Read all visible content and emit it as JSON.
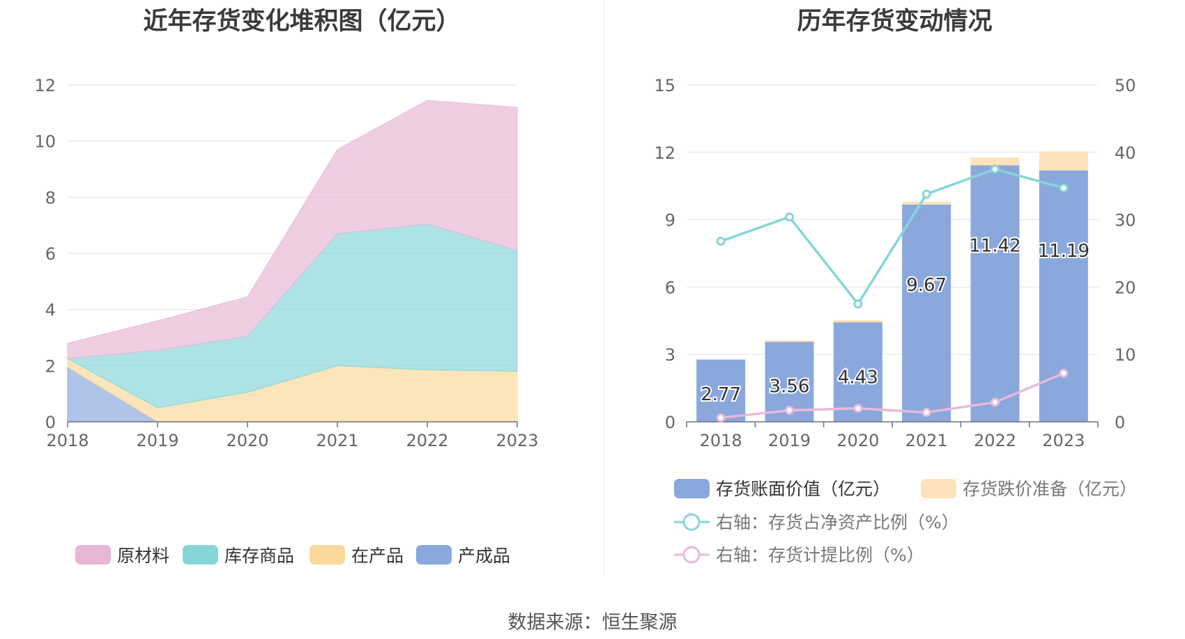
{
  "charts_titles": {
    "left": "近年存货变化堆积图（亿元）",
    "right": "历年存货变动情况"
  },
  "source_text": "数据来源：恒生聚源",
  "legend_left": [
    {
      "label": "原材料",
      "color": "#e7b7d6"
    },
    {
      "label": "库存商品",
      "color": "#86d6d8"
    },
    {
      "label": "在产品",
      "color": "#fbd89b"
    },
    {
      "label": "产成品",
      "color": "#8aa8dc"
    }
  ],
  "legend_right": [
    {
      "label": "存货账面价值（亿元）",
      "color": "#8aa8dc",
      "kind": "bar"
    },
    {
      "label": "存货跌价准备（亿元）",
      "color": "#fde3bb",
      "kind": "bar"
    },
    {
      "label": "右轴：存货占净资产比例（%）",
      "color": "#86d6d8",
      "kind": "line"
    },
    {
      "label": "右轴：存货计提比例（%）",
      "color": "#e8b9dc",
      "kind": "line"
    }
  ],
  "chart_data": [
    {
      "type": "area",
      "stacked": true,
      "title": "近年存货变化堆积图（亿元）",
      "categories": [
        "2018",
        "2019",
        "2020",
        "2021",
        "2022",
        "2023"
      ],
      "ylim": [
        0,
        12
      ],
      "yticks": [
        "0",
        "2",
        "4",
        "6",
        "8",
        "10",
        "12"
      ],
      "grid": true,
      "legend_position": "bottom",
      "series": [
        {
          "name": "产成品",
          "color": "#8aa8dc",
          "values": [
            1.95,
            0.0,
            0.0,
            0.0,
            0.0,
            0.0
          ]
        },
        {
          "name": "在产品",
          "color": "#fbd89b",
          "values": [
            0.3,
            0.5,
            1.05,
            2.0,
            1.85,
            1.8
          ]
        },
        {
          "name": "库存商品",
          "color": "#86d6d8",
          "values": [
            0.0,
            2.05,
            2.0,
            4.7,
            5.2,
            4.3
          ]
        },
        {
          "name": "原材料",
          "color": "#e7b7d6",
          "values": [
            0.55,
            1.05,
            1.4,
            3.0,
            4.4,
            5.1
          ]
        }
      ]
    },
    {
      "type": "bar",
      "title": "历年存货变动情况",
      "categories": [
        "2018",
        "2019",
        "2020",
        "2021",
        "2022",
        "2023"
      ],
      "ylim": [
        0,
        15
      ],
      "yticks": [
        "0",
        "3",
        "6",
        "9",
        "12",
        "15"
      ],
      "y2lim": [
        0,
        50
      ],
      "y2ticks": [
        "0",
        "10",
        "20",
        "30",
        "40",
        "50"
      ],
      "grid": true,
      "legend_position": "bottom",
      "bars_stacked": true,
      "series": [
        {
          "name": "存货账面价值（亿元）",
          "axis": "left",
          "color": "#8aa8dc",
          "values": [
            2.77,
            3.56,
            4.43,
            9.67,
            11.42,
            11.19
          ],
          "labels": [
            "2.77",
            "3.56",
            "4.43",
            "9.67",
            "11.42",
            "11.19"
          ]
        },
        {
          "name": "存货跌价准备（亿元）",
          "axis": "left",
          "color": "#fde3bb",
          "values": [
            0.02,
            0.07,
            0.1,
            0.13,
            0.35,
            0.85
          ]
        },
        {
          "name": "右轴：存货占净资产比例（%）",
          "axis": "right",
          "type": "line",
          "color": "#86d6d8",
          "values": [
            26.8,
            30.4,
            17.5,
            33.8,
            37.5,
            34.7
          ]
        },
        {
          "name": "右轴：存货计提比例（%）",
          "axis": "right",
          "type": "line",
          "color": "#e8b9dc",
          "values": [
            0.6,
            1.7,
            2.0,
            1.4,
            2.9,
            7.2
          ]
        }
      ]
    }
  ]
}
